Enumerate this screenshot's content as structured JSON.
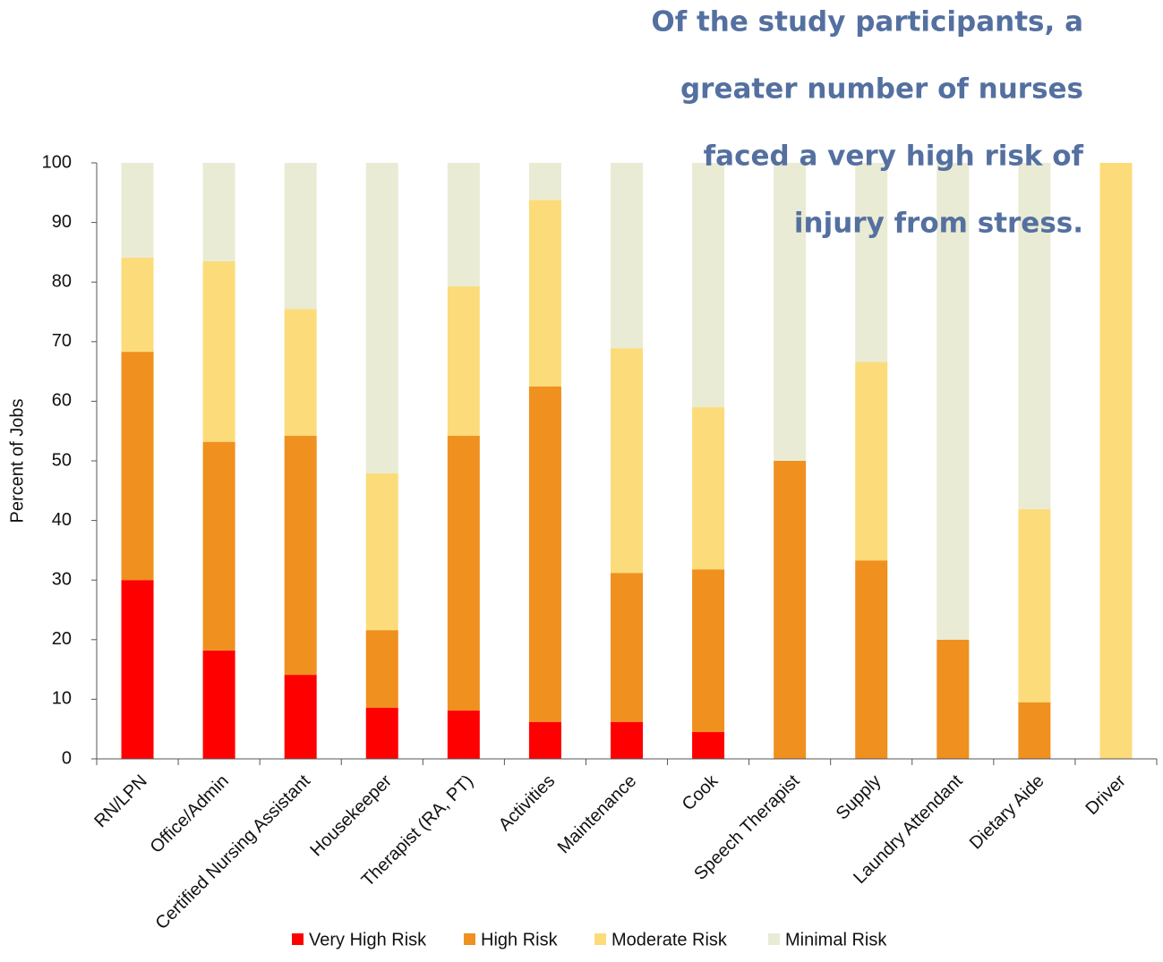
{
  "chart_data": {
    "type": "stacked_bar",
    "annotation": [
      "Of the study participants, a",
      "greater number of nurses",
      "faced a very high risk of",
      "injury from stress."
    ],
    "y_label": "Percent of Jobs",
    "categories": [
      "RN/LPN",
      "Office/Admin",
      "Certified Nursing Assistant",
      "Housekeeper",
      "Therapist (RA, PT)",
      "Activities",
      "Maintenance",
      "Cook",
      "Speech Therapist",
      "Supply",
      "Laundry Attendant",
      "Dietary Aide",
      "Driver"
    ],
    "series": [
      {
        "name": "Very High Risk",
        "color": "#ff0000",
        "values": [
          30.0,
          18.2,
          14.1,
          8.6,
          8.1,
          6.2,
          6.2,
          4.5,
          0,
          0,
          0,
          0,
          0
        ]
      },
      {
        "name": "High Risk",
        "color": "#f0901e",
        "values": [
          38.3,
          35.0,
          40.1,
          13.0,
          46.1,
          56.3,
          25.0,
          27.3,
          50.0,
          33.3,
          20.0,
          9.5,
          0
        ]
      },
      {
        "name": "Moderate Risk",
        "color": "#fcdc7a",
        "values": [
          15.8,
          30.3,
          21.3,
          26.3,
          25.1,
          31.3,
          37.7,
          27.2,
          0,
          33.3,
          0,
          32.4,
          100
        ]
      },
      {
        "name": "Minimal Risk",
        "color": "#e9ebd4",
        "values": [
          15.9,
          16.5,
          24.5,
          52.1,
          20.7,
          6.2,
          31.1,
          41.0,
          50.0,
          33.4,
          80.0,
          58.1,
          0
        ]
      }
    ],
    "ylim": [
      0,
      100
    ],
    "yticks": [
      0,
      10,
      20,
      30,
      40,
      50,
      60,
      70,
      80,
      90,
      100
    ],
    "legend": "bottom"
  }
}
